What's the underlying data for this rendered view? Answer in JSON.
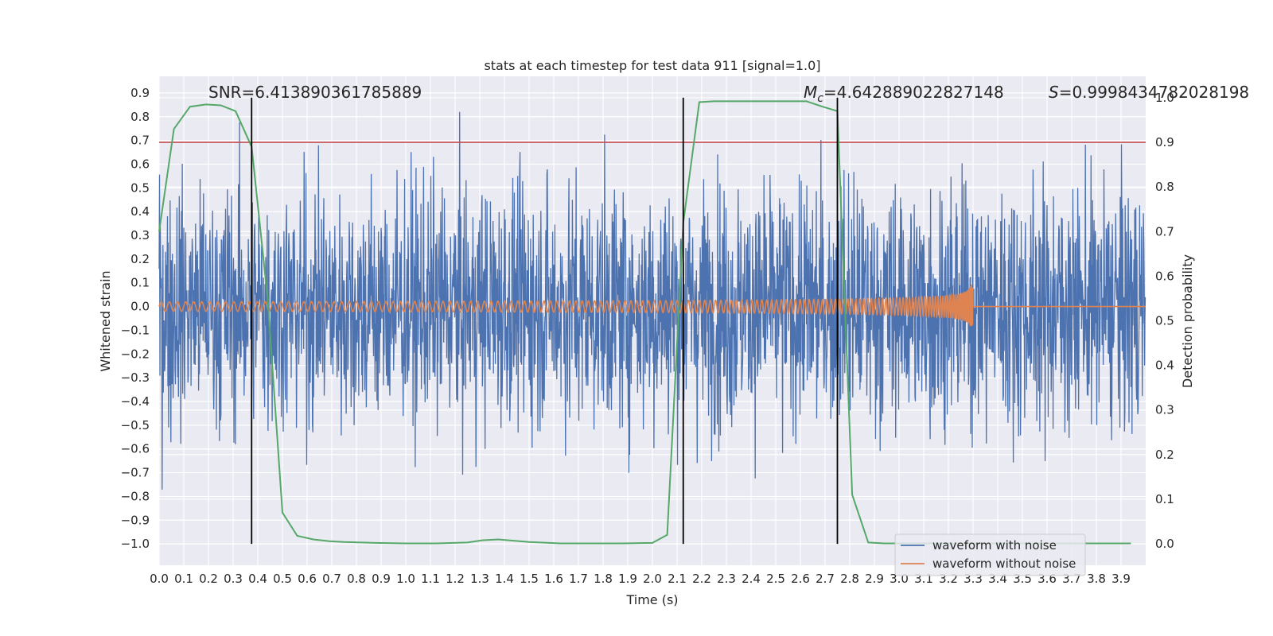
{
  "chart_data": {
    "type": "line",
    "title": "stats at each timestep for test data 911 [signal=1.0]",
    "xlabel": "Time (s)",
    "ylabel": "Whitened strain",
    "y2label": "Detection probability",
    "xlim": [
      0.0,
      4.0
    ],
    "ylim": [
      -1.09,
      0.97
    ],
    "y2lim": [
      -0.048,
      1.048
    ],
    "xticks": [
      "0.0",
      "0.1",
      "0.2",
      "0.3",
      "0.4",
      "0.5",
      "0.6",
      "0.7",
      "0.8",
      "0.9",
      "1.0",
      "1.1",
      "1.2",
      "1.3",
      "1.4",
      "1.5",
      "1.6",
      "1.7",
      "1.8",
      "1.9",
      "2.0",
      "2.1",
      "2.2",
      "2.3",
      "2.4",
      "2.5",
      "2.6",
      "2.7",
      "2.8",
      "2.9",
      "3.0",
      "3.1",
      "3.2",
      "3.3",
      "3.4",
      "3.5",
      "3.6",
      "3.7",
      "3.8",
      "3.9"
    ],
    "yticks": [
      "0.9",
      "0.8",
      "0.7",
      "0.6",
      "0.5",
      "0.4",
      "0.3",
      "0.2",
      "0.1",
      "0.0",
      "-0.1",
      "-0.2",
      "-0.3",
      "-0.4",
      "-0.5",
      "-0.6",
      "-0.7",
      "-0.8",
      "-0.9",
      "-1.0"
    ],
    "y2ticks": [
      "1.0",
      "0.9",
      "0.8",
      "0.7",
      "0.6",
      "0.5",
      "0.4",
      "0.3",
      "0.2",
      "0.1",
      "0.0"
    ],
    "grid": true,
    "legend_position": "lower-right",
    "annotations": {
      "snr": "SNR=6.413890361785889",
      "mc": "=4.642889022827148",
      "mc_symbol": "M",
      "mc_subscript": "c",
      "s": "=0.9998434782028198",
      "s_symbol": "S"
    },
    "threshold": {
      "value": 0.9,
      "axis": "y2",
      "color": "#c44e52"
    },
    "vertical_lines": [
      0.375,
      2.125,
      2.75
    ],
    "series": [
      {
        "name": "waveform with noise",
        "color": "#4c72b0",
        "axis": "y",
        "noise_amplitude": 0.3,
        "note": "dense noise, range about -0.96 to 0.85"
      },
      {
        "name": "waveform without noise",
        "color": "#dd8452",
        "axis": "y",
        "chirp_end": 3.3,
        "peak": 0.14
      },
      {
        "name": "",
        "color": "#55a868",
        "axis": "y2",
        "x": [
          0.0,
          0.06,
          0.125,
          0.19,
          0.25,
          0.31,
          0.375,
          0.44,
          0.5,
          0.56,
          0.625,
          0.69,
          0.75,
          0.875,
          1.0,
          1.125,
          1.25,
          1.31,
          1.375,
          1.5,
          1.625,
          1.75,
          1.875,
          2.0,
          2.06,
          2.125,
          2.19,
          2.25,
          2.375,
          2.5,
          2.625,
          2.69,
          2.75,
          2.81,
          2.875,
          2.94,
          3.0,
          3.25,
          3.5,
          3.75,
          3.94
        ],
        "y": [
          0.7,
          0.93,
          0.98,
          0.985,
          0.983,
          0.97,
          0.89,
          0.55,
          0.07,
          0.018,
          0.01,
          0.006,
          0.004,
          0.002,
          0.001,
          0.001,
          0.003,
          0.008,
          0.01,
          0.004,
          0.001,
          0.001,
          0.001,
          0.002,
          0.02,
          0.72,
          0.99,
          0.992,
          0.992,
          0.992,
          0.992,
          0.98,
          0.97,
          0.11,
          0.003,
          0.001,
          0.001,
          0.001,
          0.001,
          0.001,
          0.001
        ]
      }
    ]
  }
}
